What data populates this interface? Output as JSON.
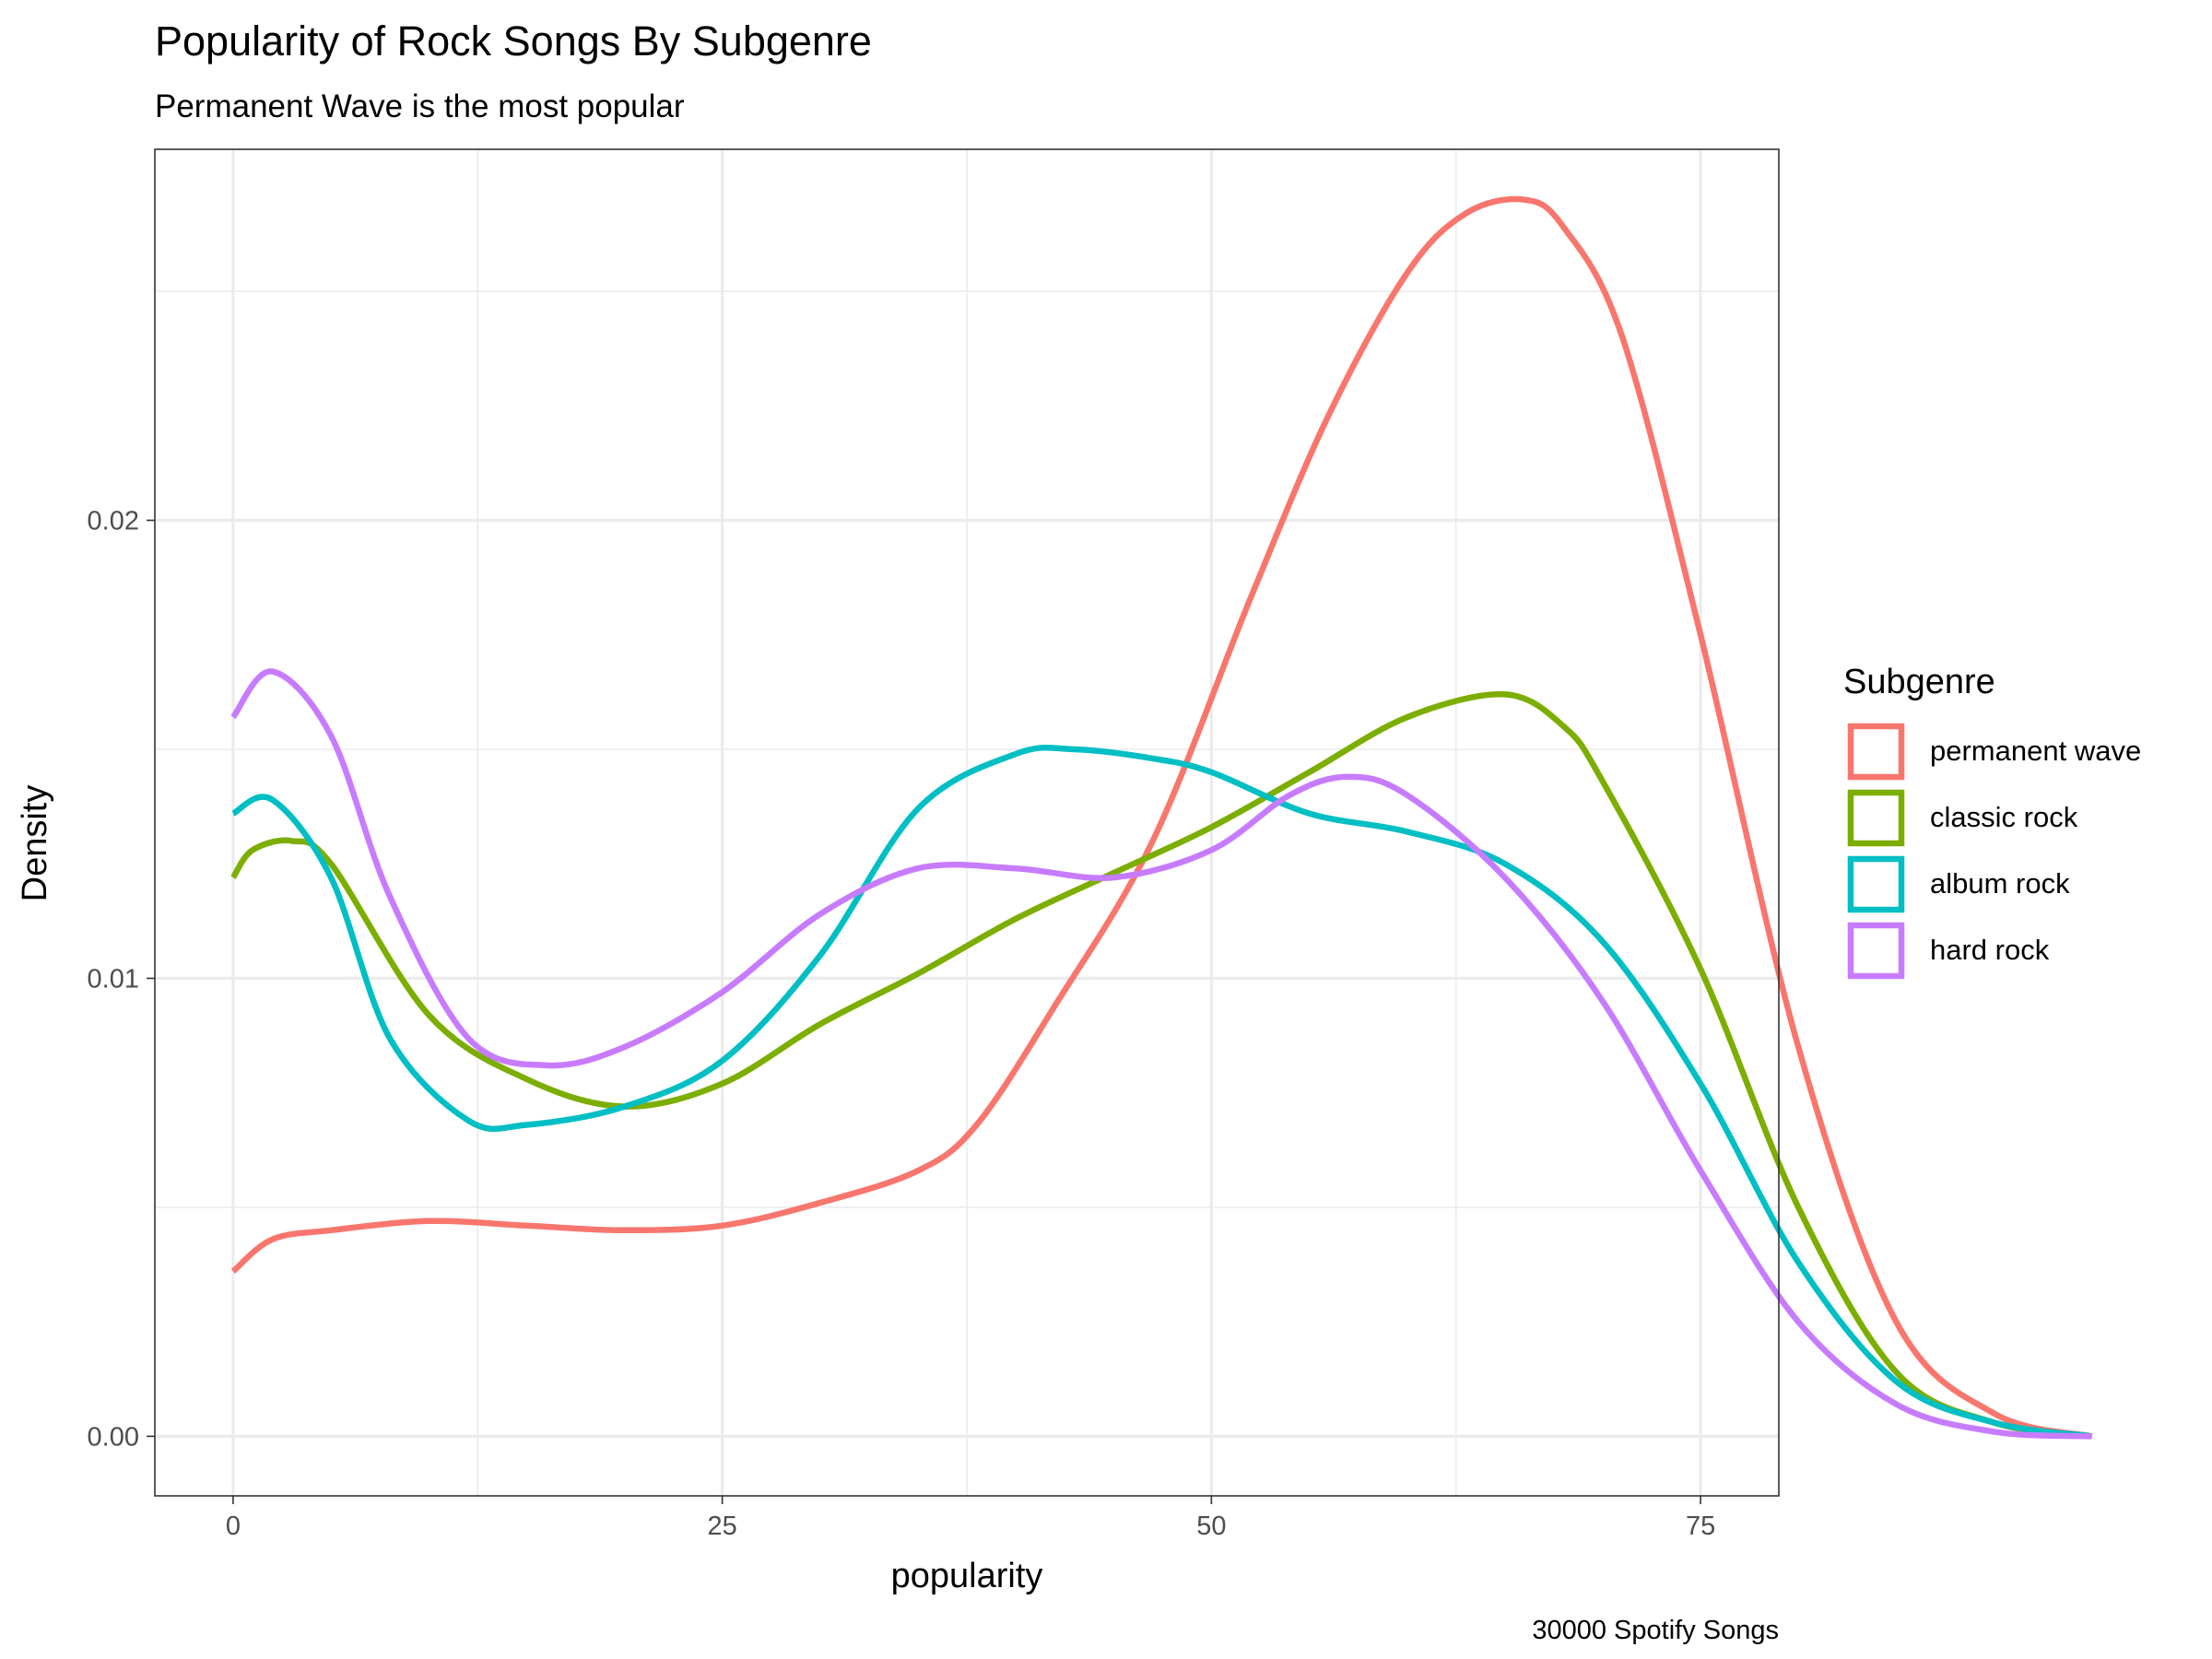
{
  "chart_data": {
    "type": "line",
    "title": "Popularity of Rock Songs By Subgenre",
    "subtitle": "Permanent Wave is the most popular",
    "xlabel": "popularity",
    "ylabel": "Density",
    "caption": "30000 Spotify Songs",
    "xlim": [
      -4,
      79
    ],
    "ylim": [
      -0.0013,
      0.0281
    ],
    "x_ticks": [
      0,
      25,
      50,
      75
    ],
    "x_tick_labels": [
      "0",
      "25",
      "50",
      "75"
    ],
    "y_ticks": [
      0.0,
      0.01,
      0.02
    ],
    "y_tick_labels": [
      "0.00",
      "0.01",
      "0.02"
    ],
    "x_minor": [
      12.5,
      37.5,
      62.5
    ],
    "y_minor": [
      0.005,
      0.015,
      0.025
    ],
    "grid": true,
    "legend": {
      "title": "Subgenre",
      "position": "right"
    },
    "series": [
      {
        "name": "permanent wave",
        "color": "#F8766D",
        "x": [
          0,
          2,
          5,
          10,
          15,
          20,
          25,
          30,
          35,
          38,
          42,
          47,
          52,
          56,
          60,
          63,
          66,
          68,
          71,
          75,
          80,
          85,
          90,
          95
        ],
        "y": [
          0.0036,
          0.0043,
          0.0045,
          0.0047,
          0.0046,
          0.0045,
          0.0046,
          0.0051,
          0.0058,
          0.0068,
          0.0094,
          0.013,
          0.0183,
          0.0223,
          0.0254,
          0.0267,
          0.027,
          0.0264,
          0.024,
          0.0175,
          0.0085,
          0.0025,
          0.0005,
          0.0
        ]
      },
      {
        "name": "classic rock",
        "color": "#7CAE00",
        "x": [
          0,
          1,
          3,
          5,
          10,
          15,
          20,
          25,
          30,
          35,
          40,
          45,
          50,
          55,
          60,
          65,
          68,
          70,
          75,
          80,
          85,
          90,
          95
        ],
        "y": [
          0.0122,
          0.0128,
          0.013,
          0.0125,
          0.0092,
          0.0078,
          0.0072,
          0.0077,
          0.009,
          0.0101,
          0.0113,
          0.0123,
          0.0133,
          0.0145,
          0.0157,
          0.0162,
          0.0155,
          0.0143,
          0.0102,
          0.005,
          0.0014,
          0.0003,
          0.0
        ]
      },
      {
        "name": "album rock",
        "color": "#00BFC4",
        "x": [
          0,
          2,
          5,
          8,
          12,
          15,
          20,
          25,
          30,
          35,
          40,
          43,
          47,
          50,
          55,
          60,
          65,
          70,
          75,
          80,
          85,
          90,
          95
        ],
        "y": [
          0.0136,
          0.0139,
          0.0122,
          0.0087,
          0.0069,
          0.0068,
          0.0072,
          0.0082,
          0.0105,
          0.0137,
          0.0149,
          0.015,
          0.0148,
          0.0145,
          0.0136,
          0.0132,
          0.0125,
          0.0108,
          0.0077,
          0.0038,
          0.0012,
          0.0003,
          0.0
        ]
      },
      {
        "name": "hard rock",
        "color": "#C77CFF",
        "x": [
          0,
          2,
          5,
          8,
          12,
          16,
          20,
          25,
          30,
          35,
          40,
          45,
          50,
          54,
          57,
          60,
          65,
          70,
          75,
          80,
          85,
          90,
          95
        ],
        "y": [
          0.0157,
          0.0167,
          0.0153,
          0.0118,
          0.0087,
          0.0081,
          0.0085,
          0.0097,
          0.0114,
          0.0124,
          0.0124,
          0.0122,
          0.0128,
          0.014,
          0.0144,
          0.014,
          0.0122,
          0.0095,
          0.0058,
          0.0025,
          0.0007,
          0.0001,
          0.0
        ]
      }
    ]
  }
}
